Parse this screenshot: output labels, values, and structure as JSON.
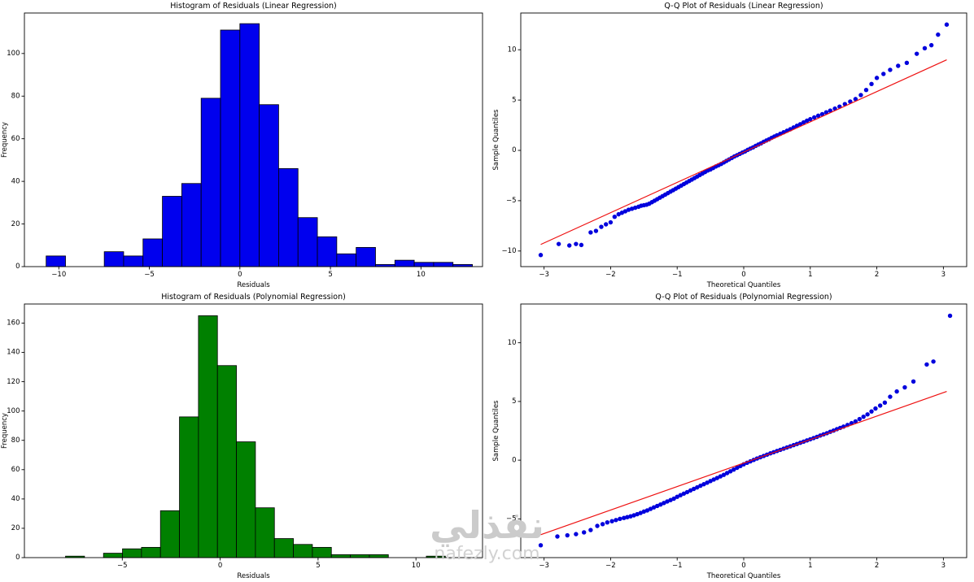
{
  "watermark": {
    "arabic": "نفذلي",
    "latin": "nafezly.com"
  },
  "chart_data": [
    {
      "id": "hist-linear",
      "type": "histogram",
      "title": "Histogram of Residuals (Linear Regression)",
      "xlabel": "Residuals",
      "ylabel": "Frequency",
      "bar_color": "#0000ee",
      "edge_color": "#000000",
      "bin_start": -10.7,
      "bin_width": 1.07,
      "counts": [
        5,
        0,
        0,
        7,
        5,
        13,
        33,
        39,
        79,
        111,
        114,
        76,
        46,
        23,
        14,
        6,
        9,
        1,
        3,
        2,
        2,
        1
      ],
      "xlim": [
        -11.9,
        13.4
      ],
      "ylim": [
        0,
        119
      ],
      "xticks": [
        -10,
        -5,
        0,
        5,
        10
      ],
      "yticks": [
        0,
        20,
        40,
        60,
        80,
        100
      ],
      "grid": false,
      "legend": null
    },
    {
      "id": "qq-linear",
      "type": "scatter",
      "title": "Q-Q Plot of Residuals (Linear Regression)",
      "xlabel": "Theoretical Quantiles",
      "ylabel": "Sample Quantiles",
      "point_color": "#0000dd",
      "line_color": "#ee1111",
      "line": [
        [
          -3.05,
          -9.35
        ],
        [
          3.05,
          9.0
        ]
      ],
      "xlim": [
        -3.35,
        3.35
      ],
      "ylim": [
        -11.55,
        13.65
      ],
      "xticks": [
        -3,
        -2,
        -1,
        0,
        1,
        2,
        3
      ],
      "yticks": [
        -10,
        -5,
        0,
        5,
        10
      ],
      "grid": false,
      "legend": null,
      "points": [
        [
          -3.05,
          -10.4
        ],
        [
          -2.78,
          -9.3
        ],
        [
          -2.62,
          -9.45
        ],
        [
          -2.52,
          -9.3
        ],
        [
          -2.44,
          -9.4
        ],
        [
          -2.3,
          -8.15
        ],
        [
          -2.22,
          -8.0
        ],
        [
          -2.14,
          -7.6
        ],
        [
          -2.07,
          -7.35
        ],
        [
          -2.0,
          -7.15
        ],
        [
          -1.94,
          -6.6
        ],
        [
          -1.88,
          -6.35
        ],
        [
          -1.83,
          -6.2
        ],
        [
          -1.78,
          -6.05
        ],
        [
          -1.73,
          -5.9
        ],
        [
          -1.68,
          -5.8
        ],
        [
          -1.63,
          -5.7
        ],
        [
          -1.58,
          -5.6
        ],
        [
          -1.54,
          -5.5
        ],
        [
          -1.5,
          -5.45
        ],
        [
          -1.46,
          -5.4
        ],
        [
          -1.42,
          -5.3
        ],
        [
          -1.38,
          -5.15
        ],
        [
          -1.34,
          -5.0
        ],
        [
          -1.3,
          -4.85
        ],
        [
          -1.26,
          -4.7
        ],
        [
          -1.22,
          -4.55
        ],
        [
          -1.18,
          -4.4
        ],
        [
          -1.14,
          -4.25
        ],
        [
          -1.1,
          -4.1
        ],
        [
          -1.06,
          -3.95
        ],
        [
          -1.02,
          -3.8
        ],
        [
          -0.98,
          -3.65
        ],
        [
          -0.94,
          -3.5
        ],
        [
          -0.9,
          -3.35
        ],
        [
          -0.86,
          -3.2
        ],
        [
          -0.82,
          -3.05
        ],
        [
          -0.78,
          -2.9
        ],
        [
          -0.74,
          -2.75
        ],
        [
          -0.7,
          -2.6
        ],
        [
          -0.66,
          -2.45
        ],
        [
          -0.62,
          -2.3
        ],
        [
          -0.58,
          -2.15
        ],
        [
          -0.54,
          -2.0
        ],
        [
          -0.5,
          -1.9
        ],
        [
          -0.46,
          -1.75
        ],
        [
          -0.42,
          -1.6
        ],
        [
          -0.38,
          -1.48
        ],
        [
          -0.34,
          -1.35
        ],
        [
          -0.3,
          -1.2
        ],
        [
          -0.26,
          -1.05
        ],
        [
          -0.22,
          -0.9
        ],
        [
          -0.18,
          -0.75
        ],
        [
          -0.14,
          -0.6
        ],
        [
          -0.1,
          -0.48
        ],
        [
          -0.06,
          -0.35
        ],
        [
          -0.02,
          -0.22
        ],
        [
          0.02,
          -0.1
        ],
        [
          0.06,
          0.05
        ],
        [
          0.1,
          0.18
        ],
        [
          0.14,
          0.3
        ],
        [
          0.18,
          0.45
        ],
        [
          0.22,
          0.58
        ],
        [
          0.26,
          0.7
        ],
        [
          0.3,
          0.85
        ],
        [
          0.34,
          0.98
        ],
        [
          0.38,
          1.1
        ],
        [
          0.42,
          1.25
        ],
        [
          0.46,
          1.38
        ],
        [
          0.5,
          1.5
        ],
        [
          0.55,
          1.65
        ],
        [
          0.6,
          1.8
        ],
        [
          0.65,
          1.95
        ],
        [
          0.7,
          2.1
        ],
        [
          0.75,
          2.28
        ],
        [
          0.8,
          2.45
        ],
        [
          0.85,
          2.6
        ],
        [
          0.9,
          2.78
        ],
        [
          0.95,
          2.95
        ],
        [
          1.0,
          3.1
        ],
        [
          1.06,
          3.28
        ],
        [
          1.12,
          3.45
        ],
        [
          1.18,
          3.6
        ],
        [
          1.24,
          3.78
        ],
        [
          1.3,
          3.95
        ],
        [
          1.37,
          4.15
        ],
        [
          1.44,
          4.35
        ],
        [
          1.52,
          4.6
        ],
        [
          1.6,
          4.85
        ],
        [
          1.68,
          5.1
        ],
        [
          1.76,
          5.5
        ],
        [
          1.84,
          6.0
        ],
        [
          1.92,
          6.6
        ],
        [
          2.0,
          7.2
        ],
        [
          2.1,
          7.6
        ],
        [
          2.2,
          8.0
        ],
        [
          2.32,
          8.4
        ],
        [
          2.45,
          8.7
        ],
        [
          2.6,
          9.6
        ],
        [
          2.72,
          10.15
        ],
        [
          2.82,
          10.45
        ],
        [
          2.92,
          11.5
        ],
        [
          3.05,
          12.5
        ]
      ]
    },
    {
      "id": "hist-poly",
      "type": "histogram",
      "title": "Histogram of Residuals (Polynomial Regression)",
      "xlabel": "Residuals",
      "ylabel": "Frequency",
      "bar_color": "#008000",
      "edge_color": "#000000",
      "bin_start": -7.9,
      "bin_width": 0.97,
      "counts": [
        1,
        0,
        3,
        6,
        7,
        32,
        96,
        165,
        131,
        79,
        34,
        13,
        9,
        7,
        2,
        2,
        2,
        0,
        0,
        1
      ],
      "xlim": [
        -10.0,
        13.4
      ],
      "ylim": [
        0,
        173
      ],
      "xticks": [
        -5,
        0,
        5,
        10
      ],
      "yticks": [
        0,
        20,
        40,
        60,
        80,
        100,
        120,
        140,
        160
      ],
      "grid": false,
      "legend": null
    },
    {
      "id": "qq-poly",
      "type": "scatter",
      "title": "Q-Q Plot of Residuals (Polynomial Regression)",
      "xlabel": "Theoretical Quantiles",
      "ylabel": "Sample Quantiles",
      "point_color": "#0000dd",
      "line_color": "#ee1111",
      "line": [
        [
          -3.05,
          -6.35
        ],
        [
          3.05,
          5.85
        ]
      ],
      "xlim": [
        -3.35,
        3.35
      ],
      "ylim": [
        -8.3,
        13.3
      ],
      "xticks": [
        -3,
        -2,
        -1,
        0,
        1,
        2,
        3
      ],
      "yticks": [
        -5,
        0,
        5,
        10
      ],
      "grid": false,
      "legend": null,
      "points": [
        [
          -3.05,
          -7.25
        ],
        [
          -2.8,
          -6.5
        ],
        [
          -2.65,
          -6.4
        ],
        [
          -2.52,
          -6.3
        ],
        [
          -2.4,
          -6.15
        ],
        [
          -2.3,
          -5.95
        ],
        [
          -2.2,
          -5.6
        ],
        [
          -2.12,
          -5.45
        ],
        [
          -2.05,
          -5.3
        ],
        [
          -1.98,
          -5.2
        ],
        [
          -1.92,
          -5.1
        ],
        [
          -1.86,
          -5.0
        ],
        [
          -1.8,
          -4.92
        ],
        [
          -1.75,
          -4.85
        ],
        [
          -1.7,
          -4.78
        ],
        [
          -1.65,
          -4.7
        ],
        [
          -1.6,
          -4.6
        ],
        [
          -1.55,
          -4.5
        ],
        [
          -1.5,
          -4.38
        ],
        [
          -1.45,
          -4.28
        ],
        [
          -1.4,
          -4.15
        ],
        [
          -1.35,
          -4.02
        ],
        [
          -1.3,
          -3.9
        ],
        [
          -1.25,
          -3.78
        ],
        [
          -1.2,
          -3.65
        ],
        [
          -1.15,
          -3.52
        ],
        [
          -1.1,
          -3.4
        ],
        [
          -1.05,
          -3.28
        ],
        [
          -1.0,
          -3.12
        ],
        [
          -0.95,
          -2.98
        ],
        [
          -0.9,
          -2.85
        ],
        [
          -0.85,
          -2.72
        ],
        [
          -0.8,
          -2.58
        ],
        [
          -0.75,
          -2.45
        ],
        [
          -0.7,
          -2.32
        ],
        [
          -0.65,
          -2.18
        ],
        [
          -0.6,
          -2.05
        ],
        [
          -0.55,
          -1.92
        ],
        [
          -0.5,
          -1.78
        ],
        [
          -0.45,
          -1.65
        ],
        [
          -0.4,
          -1.52
        ],
        [
          -0.35,
          -1.38
        ],
        [
          -0.3,
          -1.25
        ],
        [
          -0.25,
          -1.1
        ],
        [
          -0.2,
          -0.95
        ],
        [
          -0.15,
          -0.8
        ],
        [
          -0.1,
          -0.65
        ],
        [
          -0.05,
          -0.5
        ],
        [
          0.0,
          -0.35
        ],
        [
          0.05,
          -0.22
        ],
        [
          0.1,
          -0.1
        ],
        [
          0.15,
          0.02
        ],
        [
          0.2,
          0.14
        ],
        [
          0.25,
          0.25
        ],
        [
          0.3,
          0.36
        ],
        [
          0.35,
          0.47
        ],
        [
          0.4,
          0.58
        ],
        [
          0.45,
          0.68
        ],
        [
          0.5,
          0.78
        ],
        [
          0.55,
          0.88
        ],
        [
          0.6,
          0.98
        ],
        [
          0.65,
          1.08
        ],
        [
          0.7,
          1.18
        ],
        [
          0.75,
          1.28
        ],
        [
          0.8,
          1.38
        ],
        [
          0.85,
          1.48
        ],
        [
          0.9,
          1.58
        ],
        [
          0.95,
          1.68
        ],
        [
          1.0,
          1.78
        ],
        [
          1.05,
          1.88
        ],
        [
          1.1,
          1.98
        ],
        [
          1.15,
          2.1
        ],
        [
          1.2,
          2.2
        ],
        [
          1.25,
          2.3
        ],
        [
          1.3,
          2.42
        ],
        [
          1.35,
          2.52
        ],
        [
          1.4,
          2.64
        ],
        [
          1.45,
          2.75
        ],
        [
          1.5,
          2.86
        ],
        [
          1.56,
          3.0
        ],
        [
          1.62,
          3.15
        ],
        [
          1.68,
          3.3
        ],
        [
          1.74,
          3.5
        ],
        [
          1.8,
          3.7
        ],
        [
          1.86,
          3.9
        ],
        [
          1.92,
          4.15
        ],
        [
          1.98,
          4.4
        ],
        [
          2.05,
          4.65
        ],
        [
          2.12,
          4.9
        ],
        [
          2.2,
          5.4
        ],
        [
          2.3,
          5.85
        ],
        [
          2.42,
          6.2
        ],
        [
          2.55,
          6.7
        ],
        [
          2.75,
          8.15
        ],
        [
          2.85,
          8.4
        ],
        [
          3.1,
          12.3
        ]
      ]
    }
  ]
}
